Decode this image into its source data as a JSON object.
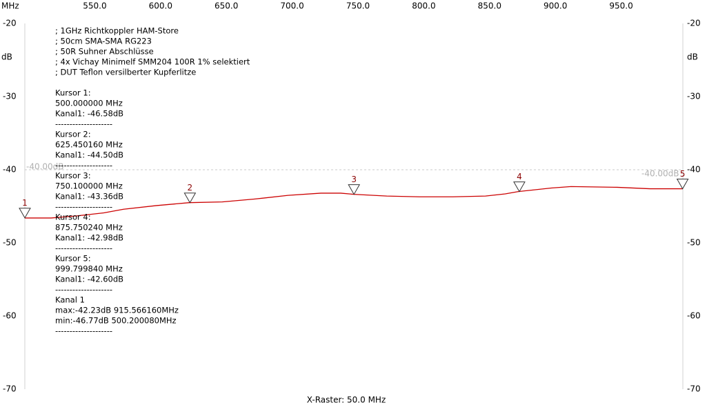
{
  "chart_data": {
    "type": "line",
    "x_unit": "MHz",
    "y_unit": "dB",
    "x_raster": "X-Raster: 50.0 MHz",
    "xlim": [
      500,
      1000
    ],
    "ylim": [
      -70,
      -20
    ],
    "xticks": [
      {
        "value": 550,
        "label": "550.0"
      },
      {
        "value": 600,
        "label": "600.0"
      },
      {
        "value": 650,
        "label": "650.0"
      },
      {
        "value": 700,
        "label": "700.0"
      },
      {
        "value": 750,
        "label": "750.0"
      },
      {
        "value": 800,
        "label": "800.0"
      },
      {
        "value": 850,
        "label": "850.0"
      },
      {
        "value": 900,
        "label": "900.0"
      },
      {
        "value": 950,
        "label": "950.0"
      }
    ],
    "yticks": [
      -20,
      -30,
      -40,
      -50,
      -60,
      -70
    ],
    "reference": {
      "value": -40,
      "label": "-40.00dB"
    },
    "series": [
      {
        "name": "Kanal 1",
        "color": "#cc0000",
        "x": [
          500,
          520,
          540,
          560,
          575,
          600,
          625,
          650,
          675,
          700,
          725,
          740,
          750,
          775,
          800,
          825,
          850,
          865,
          875,
          900,
          915,
          950,
          975,
          1000
        ],
        "values": [
          -46.6,
          -46.6,
          -46.3,
          -45.9,
          -45.4,
          -44.9,
          -44.5,
          -44.4,
          -44.0,
          -43.5,
          -43.2,
          -43.2,
          -43.36,
          -43.6,
          -43.7,
          -43.7,
          -43.6,
          -43.3,
          -42.98,
          -42.5,
          -42.3,
          -42.4,
          -42.6,
          -42.6
        ]
      }
    ],
    "markers": [
      {
        "label": "1",
        "x": 500.0,
        "y": -46.58
      },
      {
        "label": "2",
        "x": 625.45016,
        "y": -44.5
      },
      {
        "label": "3",
        "x": 750.1,
        "y": -43.36
      },
      {
        "label": "4",
        "x": 875.75024,
        "y": -42.98
      },
      {
        "label": "5",
        "x": 999.79984,
        "y": -42.6
      }
    ],
    "notes": [
      "; 1GHz Richtkoppler HAM-Store",
      "; 50cm SMA-SMA RG223",
      "; 50R Suhner Abschlüsse",
      "; 4x Vichay Minimelf SMM204 100R 1% selektiert",
      "; DUT Teflon versilberter Kupferlitze"
    ],
    "cursors": [
      {
        "title": "Kursor 1:",
        "freq": "500.000000 MHz",
        "level": "Kanal1: -46.58dB"
      },
      {
        "title": "Kursor 2:",
        "freq": "625.450160 MHz",
        "level": "Kanal1: -44.50dB"
      },
      {
        "title": "Kursor 3:",
        "freq": "750.100000 MHz",
        "level": "Kanal1: -43.36dB"
      },
      {
        "title": "Kursor 4:",
        "freq": "875.750240 MHz",
        "level": "Kanal1: -42.98dB"
      },
      {
        "title": "Kursor 5:",
        "freq": "999.799840 MHz",
        "level": "Kanal1: -42.60dB"
      }
    ],
    "summary": [
      "max:-42.23dB 915.566160MHz",
      "min:-46.77dB 500.200080MHz"
    ],
    "separator": "--------------------"
  }
}
